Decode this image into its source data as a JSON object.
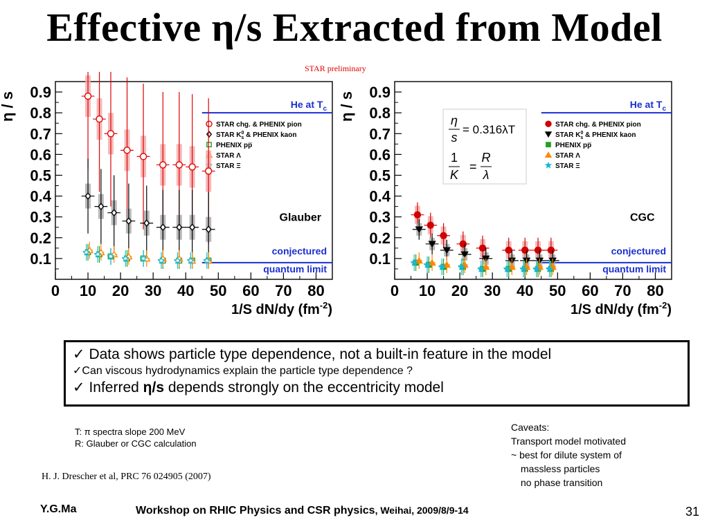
{
  "slide": {
    "title": "Effective η/s Extracted from Model",
    "preliminary_label": "STAR preliminary",
    "page_number": "31"
  },
  "chart_data": [
    {
      "type": "scatter",
      "panel_label": "Glauber",
      "ylabel": "η / s",
      "xlabel": "1/S dN/dy (fm",
      "xlabel_sup": "-2",
      "xlabel_tail": ")",
      "xlim": [
        0,
        85
      ],
      "ylim": [
        0,
        0.95
      ],
      "xticks": [
        "0",
        "10",
        "20",
        "30",
        "40",
        "50",
        "60",
        "70",
        "80"
      ],
      "yticks": [
        "0.1",
        "0.2",
        "0.3",
        "0.4",
        "0.5",
        "0.6",
        "0.7",
        "0.8",
        "0.9"
      ],
      "lines": {
        "upper_text": "He at T",
        "upper_sub": "c",
        "upper_y": 0.8,
        "lower_text_1": "conjectured",
        "lower_text_2": "quantum limit",
        "lower_y": 0.08,
        "x_start": 45,
        "color": "#1a2fd0"
      },
      "legend_placement": "top-right",
      "legend": [
        {
          "label": "STAR chg. & PHENIX pion",
          "marker": "circle-open",
          "color": "#e00000"
        },
        {
          "label": "STAR K",
          "sup": "0",
          "sub": "s",
          "tail": " & PHENIX kaon",
          "marker": "diamond-open",
          "color": "#000000"
        },
        {
          "label": "PHENIX pp̅",
          "marker": "square-open",
          "color": "#22a022"
        },
        {
          "label": "STAR Λ",
          "marker": "triangle-open",
          "color": "#ff8800"
        },
        {
          "label": "STAR Ξ",
          "marker": "star-open",
          "color": "#18b8d8"
        }
      ],
      "series": [
        {
          "name": "STAR chg. & PHENIX pion",
          "color": "#e00000",
          "marker": "circle-open",
          "x": [
            10,
            13.5,
            17,
            22,
            27,
            33,
            38,
            42,
            47
          ],
          "y": [
            0.88,
            0.77,
            0.7,
            0.62,
            0.59,
            0.55,
            0.55,
            0.54,
            0.52
          ]
        },
        {
          "name": "STAR K0s & PHENIX kaon",
          "color": "#000000",
          "marker": "diamond-open",
          "x": [
            10,
            14,
            18,
            22.5,
            28,
            33,
            38,
            42,
            47
          ],
          "y": [
            0.4,
            0.35,
            0.32,
            0.28,
            0.27,
            0.25,
            0.25,
            0.25,
            0.24
          ]
        },
        {
          "name": "PHENIX pp̅",
          "color": "#22a022",
          "marker": "square-open",
          "x": [
            10,
            13.5,
            17,
            22,
            27,
            33,
            38,
            42,
            47
          ],
          "y": [
            0.13,
            0.12,
            0.11,
            0.1,
            0.1,
            0.09,
            0.09,
            0.09,
            0.09
          ]
        },
        {
          "name": "STAR Λ",
          "color": "#ff8800",
          "marker": "triangle-open",
          "x": [
            10.5,
            14,
            18,
            22.5,
            28,
            33,
            38,
            42,
            47
          ],
          "y": [
            0.14,
            0.13,
            0.12,
            0.11,
            0.1,
            0.1,
            0.1,
            0.09,
            0.09
          ]
        },
        {
          "name": "STAR Ξ",
          "color": "#18b8d8",
          "marker": "star-open",
          "x": [
            9.5,
            13,
            17,
            21.5,
            27,
            32.5,
            37.5,
            41.5,
            46.5
          ],
          "y": [
            0.13,
            0.12,
            0.11,
            0.1,
            0.1,
            0.09,
            0.09,
            0.09,
            0.09
          ]
        }
      ]
    },
    {
      "type": "scatter",
      "panel_label": "CGC",
      "ylabel": "η / s",
      "xlabel": "1/S dN/dy (fm",
      "xlabel_sup": "-2",
      "xlabel_tail": ")",
      "xlim": [
        0,
        85
      ],
      "ylim": [
        0,
        0.95
      ],
      "xticks": [
        "0",
        "10",
        "20",
        "30",
        "40",
        "50",
        "60",
        "70",
        "80"
      ],
      "yticks": [
        "0.1",
        "0.2",
        "0.3",
        "0.4",
        "0.5",
        "0.6",
        "0.7",
        "0.8",
        "0.9"
      ],
      "formula_1_lhs_num": "η",
      "formula_1_lhs_den": "s",
      "formula_1_rhs": "= 0.316λT",
      "formula_2_lhs_num": "1",
      "formula_2_lhs_den": "K",
      "formula_2_rhs_num": "R",
      "formula_2_rhs_den": "λ",
      "lines": {
        "upper_text": "He at T",
        "upper_sub": "c",
        "upper_y": 0.8,
        "lower_text_1": "conjectured",
        "lower_text_2": "quantum limit",
        "lower_y": 0.08,
        "x_start": 45,
        "color": "#1a2fd0"
      },
      "legend_placement": "top-right",
      "legend": [
        {
          "label": "STAR chg. & PHENIX pion",
          "marker": "circle-filled",
          "color": "#d00000"
        },
        {
          "label": "STAR K",
          "sup": "0",
          "sub": "s",
          "tail": " & PHENIX kaon",
          "marker": "triangle-down-filled",
          "color": "#000000"
        },
        {
          "label": "PHENIX pp̅",
          "marker": "square-filled",
          "color": "#22a022"
        },
        {
          "label": "STAR Λ",
          "marker": "triangle-filled",
          "color": "#ff8800"
        },
        {
          "label": "STAR Ξ",
          "marker": "star-filled",
          "color": "#18b8d8"
        }
      ],
      "series": [
        {
          "name": "STAR chg. & PHENIX pion",
          "color": "#d00000",
          "marker": "circle-filled",
          "x": [
            7,
            11,
            15,
            21,
            27,
            35,
            40,
            44,
            48
          ],
          "y": [
            0.31,
            0.26,
            0.21,
            0.17,
            0.15,
            0.14,
            0.14,
            0.14,
            0.14
          ]
        },
        {
          "name": "STAR K0s & PHENIX kaon",
          "color": "#000000",
          "marker": "triangle-down-filled",
          "x": [
            7.5,
            11.5,
            16,
            21.5,
            28,
            36,
            40.5,
            44.5,
            48.5
          ],
          "y": [
            0.24,
            0.17,
            0.14,
            0.12,
            0.1,
            0.09,
            0.09,
            0.09,
            0.09
          ]
        },
        {
          "name": "PHENIX pp̅",
          "color": "#22a022",
          "marker": "square-filled",
          "x": [
            6.5,
            10.5,
            15,
            21,
            27,
            35,
            40,
            44,
            48
          ],
          "y": [
            0.08,
            0.07,
            0.06,
            0.06,
            0.05,
            0.05,
            0.05,
            0.05,
            0.05
          ]
        },
        {
          "name": "STAR Λ",
          "color": "#ff8800",
          "marker": "triangle-filled",
          "x": [
            7.5,
            11.5,
            16,
            21.5,
            28,
            36,
            40.5,
            44.5,
            48.5
          ],
          "y": [
            0.09,
            0.08,
            0.07,
            0.07,
            0.06,
            0.06,
            0.06,
            0.06,
            0.06
          ]
        },
        {
          "name": "STAR Ξ",
          "color": "#18b8d8",
          "marker": "star-filled",
          "x": [
            6,
            10,
            14.5,
            20.5,
            26.5,
            34.5,
            39.5,
            43.5,
            47.5
          ],
          "y": [
            0.08,
            0.07,
            0.06,
            0.06,
            0.05,
            0.05,
            0.05,
            0.05,
            0.05
          ]
        }
      ]
    }
  ],
  "bullets": {
    "check": "✓",
    "b1": "Data shows particle type dependence, not a built-in feature in the model",
    "b2": "Can viscous hydrodynamics explain the particle type dependence ?",
    "b3_pre": "Inferred ",
    "b3_bold": "η/s",
    "b3_post": " depends strongly on the eccentricity model"
  },
  "notes": {
    "t_line": "T: π spectra slope 200 MeV",
    "r_line": "R: Glauber or CGC calculation",
    "caveats_title": "Caveats:",
    "caveat_1": "Transport model motivated",
    "caveat_2": "~ best for dilute system of",
    "caveat_3": "massless particles",
    "caveat_4": "no phase transition"
  },
  "reference": "H. J. Drescher et al, PRC 76 024905 (2007)",
  "footer": {
    "author": "Y.G.Ma",
    "workshop": "Workshop on RHIC Physics and CSR physics",
    "place_date": ", Weihai, 2009/8/9-14"
  }
}
